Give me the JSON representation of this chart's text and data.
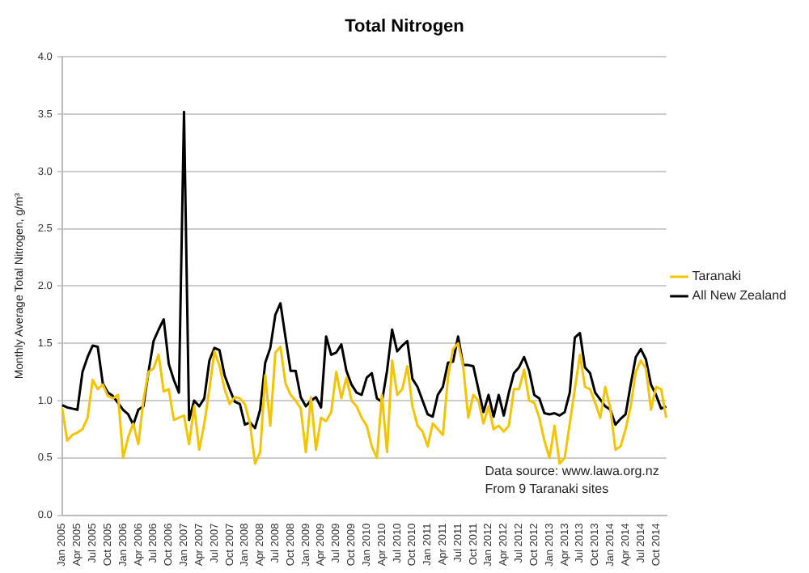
{
  "chart_data": {
    "type": "line",
    "title": "Total Nitrogen",
    "ylabel": "Monthly Average Total Nitrogen, g/m³",
    "categories": [
      "Jan 2005",
      null,
      null,
      "Apr 2005",
      null,
      null,
      "Jul 2005",
      null,
      null,
      "Oct 2005",
      null,
      null,
      "Jan 2006",
      null,
      null,
      "Apr 2006",
      null,
      null,
      "Jul 2006",
      null,
      null,
      "Oct 2006",
      null,
      null,
      "Jan 2007",
      null,
      null,
      "Apr 2007",
      null,
      null,
      "Jul 2007",
      null,
      null,
      "Oct 2007",
      null,
      null,
      "Jan 2008",
      null,
      null,
      "Apr 2008",
      null,
      null,
      "Jul 2008",
      null,
      null,
      "Oct 2008",
      null,
      null,
      "Jan 2009",
      null,
      null,
      "Apr 2009",
      null,
      null,
      "Jul 2009",
      null,
      null,
      "Oct 2009",
      null,
      null,
      "Jan 2010",
      null,
      null,
      "Apr 2010",
      null,
      null,
      "Jul 2010",
      null,
      null,
      "Oct 2010",
      null,
      null,
      "Jan 2011",
      null,
      null,
      "Apr 2011",
      null,
      null,
      "Jul 2011",
      null,
      null,
      "Oct 2011",
      null,
      null,
      "Jan 2012",
      null,
      null,
      "Apr 2012",
      null,
      null,
      "Jul 2012",
      null,
      null,
      "Oct 2012",
      null,
      null,
      "Jan 2013",
      null,
      null,
      "Apr 2013",
      null,
      null,
      "Jul 2013",
      null,
      null,
      "Oct 2013",
      null,
      null,
      "Jan 2014",
      null,
      null,
      "Apr 2014",
      null,
      null,
      "Jul 2014",
      null,
      null,
      "Oct 2014",
      null,
      null
    ],
    "series": [
      {
        "name": "Taranaki",
        "color": "#f5c400",
        "values": [
          0.93,
          0.65,
          0.7,
          0.72,
          0.75,
          0.85,
          1.18,
          1.1,
          1.14,
          1.04,
          1.02,
          1.05,
          0.5,
          0.68,
          0.8,
          0.62,
          1.0,
          1.25,
          1.28,
          1.4,
          1.08,
          1.1,
          0.83,
          0.85,
          0.87,
          0.62,
          0.95,
          0.57,
          0.8,
          1.1,
          1.43,
          1.3,
          1.1,
          0.97,
          1.03,
          1.02,
          0.97,
          0.8,
          0.45,
          0.55,
          1.22,
          0.78,
          1.42,
          1.47,
          1.15,
          1.05,
          1.0,
          0.93,
          0.55,
          1.03,
          0.57,
          0.85,
          0.82,
          0.9,
          1.25,
          1.02,
          1.2,
          1.0,
          0.95,
          0.85,
          0.78,
          0.6,
          0.5,
          1.05,
          0.55,
          1.35,
          1.05,
          1.1,
          1.3,
          0.95,
          0.78,
          0.73,
          0.6,
          0.8,
          0.75,
          0.7,
          1.2,
          1.45,
          1.5,
          1.3,
          0.85,
          1.05,
          1.0,
          0.8,
          0.95,
          0.75,
          0.78,
          0.73,
          0.78,
          1.1,
          1.1,
          1.27,
          1.0,
          0.98,
          0.85,
          0.65,
          0.5,
          0.78,
          0.45,
          0.5,
          0.8,
          1.1,
          1.4,
          1.12,
          1.1,
          0.98,
          0.85,
          1.12,
          0.93,
          0.57,
          0.6,
          0.75,
          0.95,
          1.25,
          1.35,
          1.28,
          0.92,
          1.12,
          1.1,
          0.85
        ]
      },
      {
        "name": "All New Zealand",
        "color": "#000000",
        "values": [
          0.96,
          0.94,
          0.93,
          0.92,
          1.25,
          1.38,
          1.48,
          1.47,
          1.15,
          1.07,
          1.04,
          0.98,
          0.92,
          0.88,
          0.79,
          0.92,
          0.95,
          1.25,
          1.52,
          1.62,
          1.71,
          1.32,
          1.18,
          1.07,
          3.52,
          0.83,
          1.0,
          0.95,
          1.02,
          1.35,
          1.46,
          1.44,
          1.22,
          1.1,
          0.99,
          0.97,
          0.79,
          0.81,
          0.76,
          0.92,
          1.33,
          1.46,
          1.75,
          1.85,
          1.55,
          1.26,
          1.26,
          1.03,
          0.95,
          1.0,
          1.03,
          0.94,
          1.56,
          1.4,
          1.42,
          1.49,
          1.26,
          1.14,
          1.07,
          1.05,
          1.2,
          1.24,
          1.02,
          0.99,
          1.26,
          1.62,
          1.43,
          1.48,
          1.52,
          1.19,
          1.12,
          1.0,
          0.88,
          0.86,
          1.05,
          1.12,
          1.33,
          1.34,
          1.56,
          1.31,
          1.31,
          1.3,
          1.1,
          0.9,
          1.05,
          0.86,
          1.05,
          0.87,
          1.07,
          1.24,
          1.29,
          1.38,
          1.26,
          1.05,
          1.02,
          0.89,
          0.88,
          0.89,
          0.87,
          0.9,
          1.07,
          1.55,
          1.59,
          1.29,
          1.24,
          1.07,
          1.01,
          0.95,
          0.92,
          0.79,
          0.84,
          0.88,
          1.14,
          1.38,
          1.45,
          1.36,
          1.14,
          1.05,
          0.93,
          0.95
        ]
      }
    ],
    "ylim": [
      0,
      4
    ],
    "yticks": [
      {
        "value": 0,
        "label": "0.0"
      },
      0.5,
      {
        "value": 1,
        "label": "1.0"
      },
      1.5,
      {
        "value": 2,
        "label": "2.0"
      },
      2.5,
      {
        "value": 3,
        "label": "3.0"
      },
      3.5,
      {
        "value": 4,
        "label": "4.0"
      }
    ],
    "grid": "y",
    "legend": "right",
    "marker": "none",
    "line_style": "solid",
    "annotations": [
      "Data source: www.lawa.org.nz",
      "From 9 Taranaki sites"
    ]
  }
}
